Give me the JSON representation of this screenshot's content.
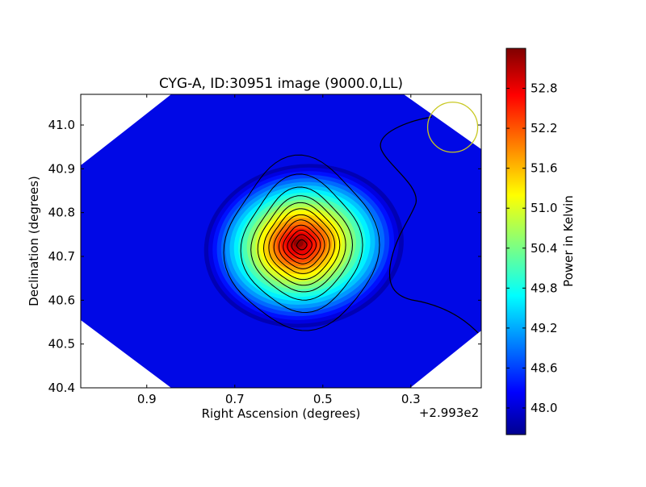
{
  "chart_data": {
    "type": "heatmap",
    "title": "CYG-A, ID:30951 image (9000.0,LL)",
    "xlabel": "Right Ascension (degrees)",
    "ylabel": "Declination (degrees)",
    "x_offset_label": "+2.993e2",
    "x_offset_value": 299.3,
    "xlim": [
      1.05,
      0.14
    ],
    "ylim": [
      40.4,
      41.07
    ],
    "x_ticks": [
      0.9,
      0.7,
      0.5,
      0.3
    ],
    "x_tick_labels": [
      "0.9",
      "0.7",
      "0.5",
      "0.3"
    ],
    "y_ticks": [
      40.4,
      40.5,
      40.6,
      40.7,
      40.8,
      40.9,
      41.0
    ],
    "y_tick_labels": [
      "40.4",
      "40.5",
      "40.6",
      "40.7",
      "40.8",
      "40.9",
      "41.0"
    ],
    "colorbar": {
      "label": "Power in Kelvin",
      "range": [
        47.6,
        53.4
      ],
      "ticks": [
        48.0,
        48.6,
        49.2,
        49.8,
        50.4,
        51.0,
        51.6,
        52.2,
        52.8
      ],
      "tick_labels": [
        "48.0",
        "48.6",
        "49.2",
        "49.8",
        "50.4",
        "51.0",
        "51.6",
        "52.2",
        "52.8"
      ],
      "colormap": "jet"
    },
    "peak": {
      "ra_offset": 0.555,
      "dec": 40.73,
      "value": 53.3
    },
    "background_level": 47.9,
    "contours": {
      "count": 12,
      "color": "#000000"
    },
    "beam_circle": {
      "ra_offset": 0.205,
      "dec": 40.995,
      "color": "#c8c820"
    },
    "grid": false,
    "colors": {
      "low": "#00008f",
      "mid_low": "#0000ff",
      "mid": "#00ffff",
      "mid_high": "#ffff00",
      "high": "#ff0000",
      "top": "#800000"
    }
  }
}
